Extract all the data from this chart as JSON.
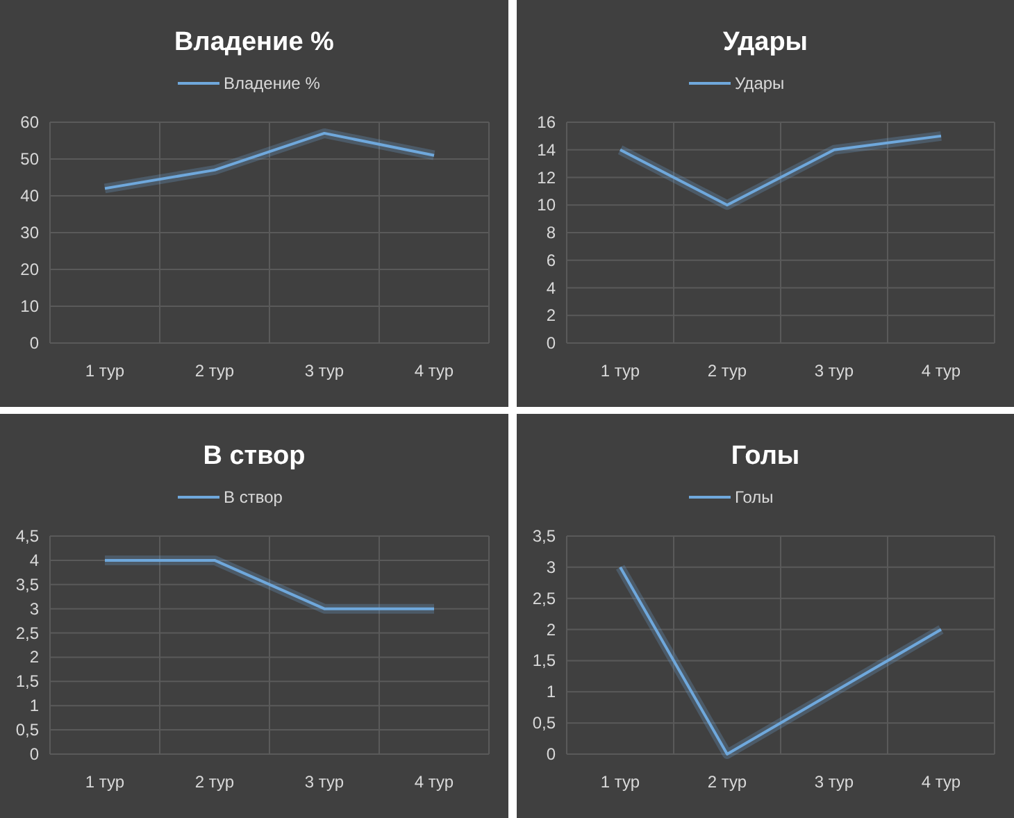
{
  "chart_data": [
    {
      "type": "line",
      "title": "Владение %",
      "categories": [
        "1 тур",
        "2 тур",
        "3 тур",
        "4 тур"
      ],
      "series": [
        {
          "name": "Владение %",
          "color": "#6fa8dc",
          "values": [
            42,
            47,
            57,
            51
          ]
        }
      ],
      "ylim": [
        0,
        60
      ],
      "yticks": [
        0,
        10,
        20,
        30,
        40,
        50,
        60
      ],
      "grid": true,
      "legend": "top",
      "marker": "none"
    },
    {
      "type": "line",
      "title": "Удары",
      "categories": [
        "1 тур",
        "2 тур",
        "3 тур",
        "4 тур"
      ],
      "series": [
        {
          "name": "Удары",
          "color": "#6fa8dc",
          "values": [
            14,
            10,
            14,
            15
          ]
        }
      ],
      "ylim": [
        0,
        16
      ],
      "yticks": [
        0,
        2,
        4,
        6,
        8,
        10,
        12,
        14,
        16
      ],
      "grid": true,
      "legend": "top",
      "marker": "none"
    },
    {
      "type": "line",
      "title": "В створ",
      "categories": [
        "1 тур",
        "2 тур",
        "3 тур",
        "4 тур"
      ],
      "series": [
        {
          "name": "В створ",
          "color": "#6fa8dc",
          "values": [
            4,
            4,
            3,
            3
          ]
        }
      ],
      "ylim": [
        0,
        4.5
      ],
      "yticks": [
        0,
        {
          "value": 0.5,
          "label": "0,5"
        },
        1,
        {
          "value": 1.5,
          "label": "1,5"
        },
        2,
        {
          "value": 2.5,
          "label": "2,5"
        },
        3,
        {
          "value": 3.5,
          "label": "3,5"
        },
        4,
        {
          "value": 4.5,
          "label": "4,5"
        }
      ],
      "grid": true,
      "legend": "top",
      "marker": "none"
    },
    {
      "type": "line",
      "title": "Голы",
      "categories": [
        "1 тур",
        "2 тур",
        "3 тур",
        "4 тур"
      ],
      "series": [
        {
          "name": "Голы",
          "color": "#6fa8dc",
          "values": [
            3,
            0,
            1,
            2
          ]
        }
      ],
      "ylim": [
        0,
        3.5
      ],
      "yticks": [
        0,
        {
          "value": 0.5,
          "label": "0,5"
        },
        1,
        {
          "value": 1.5,
          "label": "1,5"
        },
        2,
        {
          "value": 2.5,
          "label": "2,5"
        },
        3,
        {
          "value": 3.5,
          "label": "3,5"
        }
      ],
      "grid": true,
      "legend": "top",
      "marker": "none"
    }
  ]
}
